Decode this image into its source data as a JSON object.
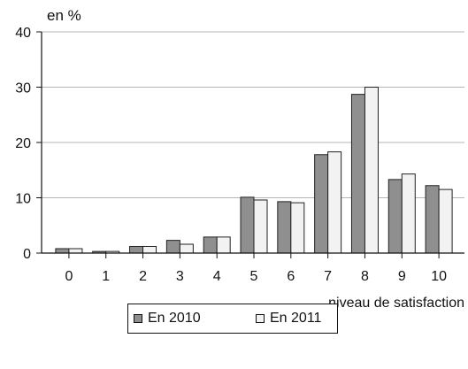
{
  "chart_data": {
    "type": "bar",
    "ylabel": "en %",
    "xlabel": "niveau de satisfaction",
    "categories": [
      "0",
      "1",
      "2",
      "3",
      "4",
      "5",
      "6",
      "7",
      "8",
      "9",
      "10"
    ],
    "ylim": [
      0,
      40
    ],
    "yticks": [
      "0",
      "10",
      "20",
      "30",
      "40"
    ],
    "grid": true,
    "legend_position": "bottom",
    "series": [
      {
        "name": "En 2010",
        "color": "#8f8f8f",
        "values": [
          0.8,
          0.3,
          1.2,
          2.3,
          2.9,
          10.1,
          9.3,
          17.8,
          28.7,
          13.3,
          12.2
        ]
      },
      {
        "name": "En 2011",
        "color": "#f2f2f2",
        "values": [
          0.8,
          0.3,
          1.2,
          1.6,
          2.9,
          9.6,
          9.1,
          18.3,
          30.0,
          14.3,
          11.5
        ]
      }
    ]
  },
  "legend": {
    "items": [
      {
        "label": "En 2010",
        "swatch": "#8f8f8f"
      },
      {
        "label": "En 2011",
        "swatch": "#f2f2f2"
      }
    ]
  }
}
